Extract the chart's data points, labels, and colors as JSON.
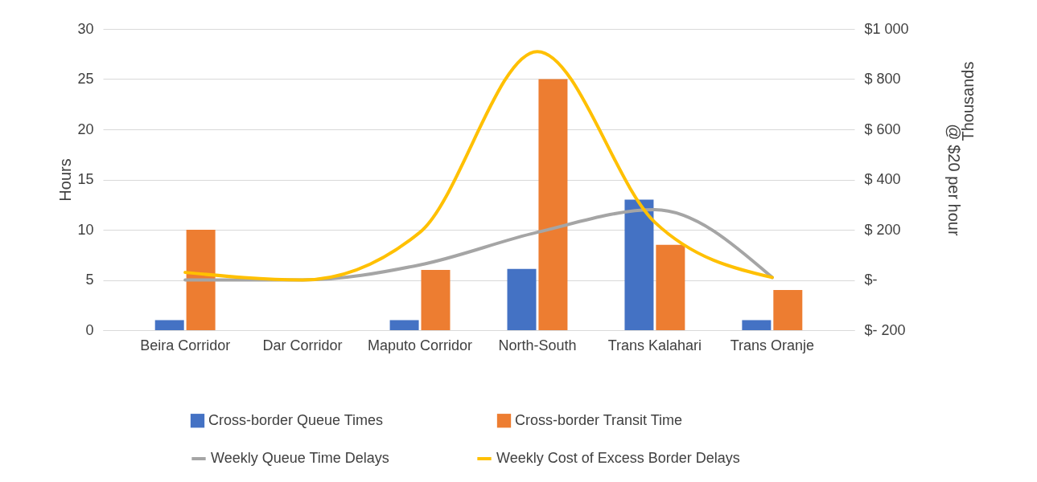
{
  "chart_data": {
    "type": "bar",
    "categories": [
      "Beira Corridor",
      "Dar Corridor",
      "Maputo Corridor",
      "North-South",
      "Trans Kalahari",
      "Trans Oranje"
    ],
    "ylabel": "Hours",
    "y2label": "@ $20 per hour",
    "annotations": [
      "Thousands"
    ],
    "ylim": [
      0,
      30
    ],
    "yticks": [
      0,
      5,
      10,
      15,
      20,
      25,
      30
    ],
    "y2lim": [
      -200,
      1000
    ],
    "y2ticks": [
      {
        "value": -200,
        "label": "$- 200"
      },
      {
        "value": 0,
        "label": "$-"
      },
      {
        "value": 200,
        "label": "$ 200"
      },
      {
        "value": 400,
        "label": "$ 400"
      },
      {
        "value": 600,
        "label": "$ 600"
      },
      {
        "value": 800,
        "label": "$ 800"
      },
      {
        "value": 1000,
        "label": "$1 000"
      }
    ],
    "grid": "y",
    "legend": "bottom",
    "series": [
      {
        "name": "Cross-border Queue Times",
        "type": "bar",
        "color": "#4472c4",
        "values": [
          1,
          null,
          1,
          6.1,
          13,
          1
        ]
      },
      {
        "name": "Cross-border Transit Time",
        "type": "bar",
        "color": "#ed7d31",
        "values": [
          10,
          null,
          6,
          25,
          8.5,
          4
        ]
      },
      {
        "name": "Weekly Queue Time Delays",
        "type": "line",
        "axis": "y2",
        "color": "#a5a5a5",
        "values": [
          0,
          0,
          60,
          190,
          280,
          10
        ]
      },
      {
        "name": "Weekly Cost of Excess Border Delays",
        "type": "line",
        "axis": "y2",
        "color": "#ffc000",
        "values": [
          30,
          0,
          190,
          910,
          230,
          10
        ]
      }
    ]
  }
}
